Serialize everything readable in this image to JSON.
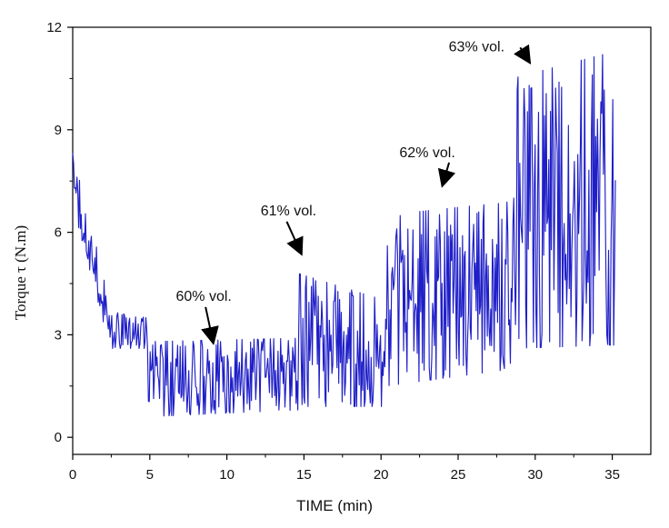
{
  "chart_data": {
    "type": "line",
    "title": "",
    "xlabel": "TIME (min)",
    "ylabel": "Torque τ  (N.m)",
    "xlim": [
      0,
      37.5
    ],
    "ylim": [
      -0.5,
      12
    ],
    "x_ticks": [
      0,
      5,
      10,
      15,
      20,
      25,
      30,
      35
    ],
    "y_ticks": [
      0,
      3,
      6,
      9,
      12
    ],
    "grid": false,
    "legend": "none",
    "series": [
      {
        "color": "#1f1fc8",
        "segments": [
          {
            "x0": 0,
            "x1": 2.2,
            "lo_start": 6.8,
            "lo_end": 3.0,
            "hi_start": 8.3,
            "hi_end": 4.4
          },
          {
            "x0": 2.2,
            "x1": 4.8,
            "lo_start": 2.6,
            "lo_end": 2.6,
            "hi_start": 3.7,
            "hi_end": 3.5
          },
          {
            "x0": 4.8,
            "x1": 14.6,
            "lo_start": 0.6,
            "lo_end": 0.8,
            "hi_start": 2.8,
            "hi_end": 2.9
          },
          {
            "x0": 14.6,
            "x1": 20.3,
            "lo_start": 0.9,
            "lo_end": 0.9,
            "hi_start": 4.8,
            "hi_end": 4.0
          },
          {
            "x0": 20.3,
            "x1": 28.5,
            "lo_start": 1.5,
            "lo_end": 2.0,
            "hi_start": 6.5,
            "hi_end": 6.9
          },
          {
            "x0": 28.5,
            "x1": 35.2,
            "lo_start": 2.6,
            "lo_end": 2.7,
            "hi_start": 10.5,
            "hi_end": 11.3
          }
        ]
      }
    ],
    "annotations": [
      {
        "text": "60% vol.",
        "label_x": 8.5,
        "label_y": 4.0,
        "tip_x": 9.1,
        "tip_y": 2.8
      },
      {
        "text": "61% vol.",
        "label_x": 14.0,
        "label_y": 6.5,
        "tip_x": 14.8,
        "tip_y": 5.4
      },
      {
        "text": "62% vol.",
        "label_x": 23.0,
        "label_y": 8.2,
        "tip_x": 24.0,
        "tip_y": 7.4
      },
      {
        "text": "63% vol.",
        "label_x": 26.2,
        "label_y": 11.3,
        "tip_x": 29.6,
        "tip_y": 11.0
      }
    ]
  }
}
